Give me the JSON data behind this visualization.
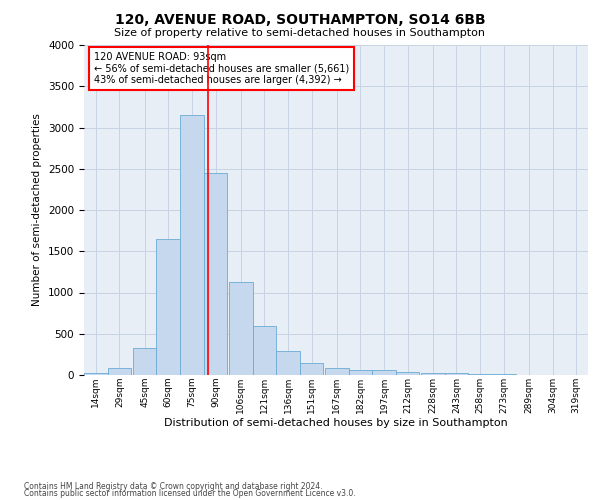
{
  "title": "120, AVENUE ROAD, SOUTHAMPTON, SO14 6BB",
  "subtitle": "Size of property relative to semi-detached houses in Southampton",
  "xlabel": "Distribution of semi-detached houses by size in Southampton",
  "ylabel": "Number of semi-detached properties",
  "footnote1": "Contains HM Land Registry data © Crown copyright and database right 2024.",
  "footnote2": "Contains public sector information licensed under the Open Government Licence v3.0.",
  "bar_color": "#c5d8ee",
  "bar_edge_color": "#6baad4",
  "grid_color": "#c8d4e4",
  "bg_color": "#e8eef6",
  "annotation_box": {
    "text": "120 AVENUE ROAD: 93sqm\n← 56% of semi-detached houses are smaller (5,661)\n43% of semi-detached houses are larger (4,392) →",
    "box_color": "white",
    "box_edge_color": "red"
  },
  "vline_x": 93,
  "vline_color": "red",
  "categories": [
    "14sqm",
    "29sqm",
    "45sqm",
    "60sqm",
    "75sqm",
    "90sqm",
    "106sqm",
    "121sqm",
    "136sqm",
    "151sqm",
    "167sqm",
    "182sqm",
    "197sqm",
    "212sqm",
    "228sqm",
    "243sqm",
    "258sqm",
    "273sqm",
    "289sqm",
    "304sqm",
    "319sqm"
  ],
  "bin_edges": [
    14,
    29,
    45,
    60,
    75,
    90,
    106,
    121,
    136,
    151,
    167,
    182,
    197,
    212,
    228,
    243,
    258,
    273,
    289,
    304,
    319
  ],
  "bin_width": 15,
  "values": [
    30,
    80,
    330,
    1650,
    3150,
    2450,
    1130,
    600,
    290,
    150,
    90,
    65,
    55,
    40,
    30,
    20,
    12,
    8,
    4,
    2,
    1
  ],
  "ylim": [
    0,
    4000
  ],
  "yticks": [
    0,
    500,
    1000,
    1500,
    2000,
    2500,
    3000,
    3500,
    4000
  ]
}
